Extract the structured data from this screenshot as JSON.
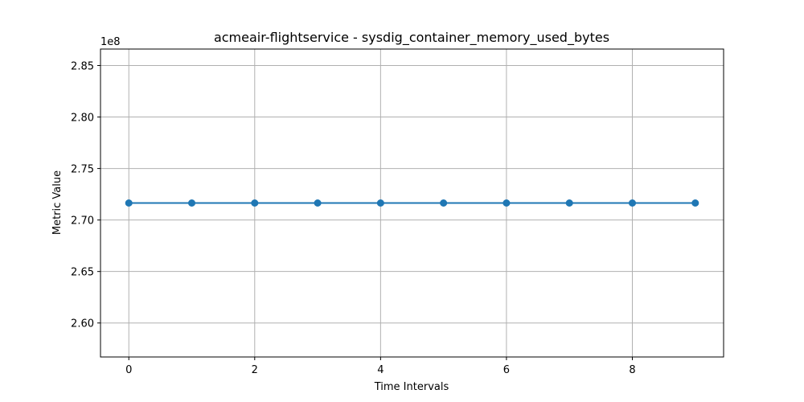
{
  "chart_data": {
    "type": "line",
    "title": "acmeair-flightservice - sysdig_container_memory_used_bytes",
    "xlabel": "Time Intervals",
    "ylabel": "Metric Value",
    "y_offset_label": "1e8",
    "x": [
      0,
      1,
      2,
      3,
      4,
      5,
      6,
      7,
      8,
      9
    ],
    "series": [
      {
        "values": [
          271650000,
          271650000,
          271650000,
          271650000,
          271650000,
          271650000,
          271650000,
          271650000,
          271650000,
          271650000
        ],
        "color": "#1f77b4",
        "marker": "circle"
      }
    ],
    "xlim": [
      -0.45,
      9.45
    ],
    "ylim": [
      256700000,
      286600000
    ],
    "xticks": [
      0,
      2,
      4,
      6,
      8
    ],
    "xtick_labels": [
      "0",
      "2",
      "4",
      "6",
      "8"
    ],
    "yticks": [
      260000000,
      265000000,
      270000000,
      275000000,
      280000000,
      285000000
    ],
    "ytick_labels": [
      "2.60",
      "2.65",
      "2.70",
      "2.75",
      "2.80",
      "2.85"
    ],
    "grid": true,
    "legend": "none"
  }
}
